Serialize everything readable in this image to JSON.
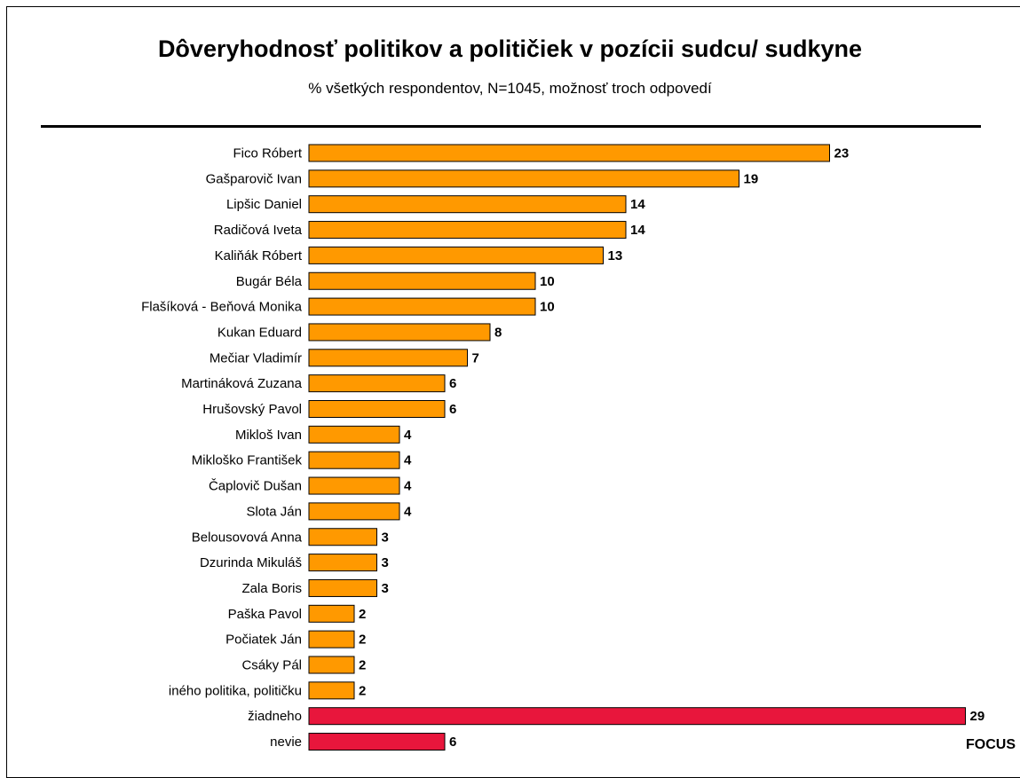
{
  "title": "Dôveryhodnosť politikov a političiek v pozícii sudcu/ sudkyne",
  "subtitle": "% všetkých respondentov, N=1045, možnosť troch odpovedí",
  "brand": "FOCUS",
  "colors": {
    "main": "#ff9900",
    "highlight": "#e8163c",
    "stroke": "#000000"
  },
  "chart_data": {
    "type": "bar",
    "orientation": "horizontal",
    "categories": [
      "Fico Róbert",
      "Gašparovič Ivan",
      "Lipšic Daniel",
      "Radičová Iveta",
      "Kaliňák Róbert",
      "Bugár Béla",
      "Flašíková - Beňová Monika",
      "Kukan Eduard",
      "Mečiar Vladimír",
      "Martináková Zuzana",
      "Hrušovský Pavol",
      "Mikloš Ivan",
      "Mikloško František",
      "Čaplovič Dušan",
      "Slota Ján",
      "Belousovová Anna",
      "Dzurinda Mikuláš",
      "Zala Boris",
      "Paška Pavol",
      "Počiatek Ján",
      "Csáky Pál",
      "iného politika, političku",
      "žiadneho",
      "nevie"
    ],
    "values": [
      23,
      19,
      14,
      14,
      13,
      10,
      10,
      8,
      7,
      6,
      6,
      4,
      4,
      4,
      4,
      3,
      3,
      3,
      2,
      2,
      2,
      2,
      29,
      6
    ],
    "highlighted_categories": [
      "žiadneho",
      "nevie"
    ],
    "data_labels": true,
    "grid": false
  }
}
